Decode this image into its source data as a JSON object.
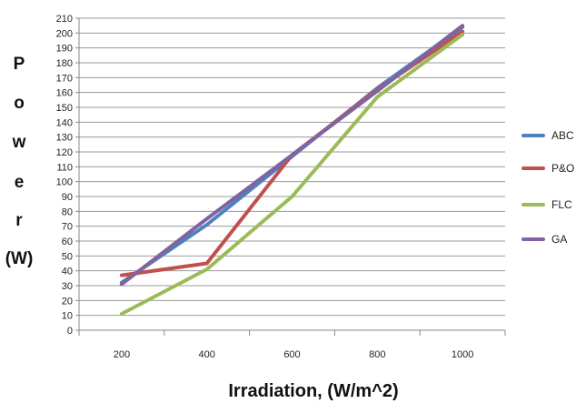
{
  "chart_data": {
    "type": "line",
    "xlabel": "Irradiation, (W/m^2)",
    "ylabel_letters": [
      "P",
      "o",
      "w",
      "e",
      "r",
      "(W)"
    ],
    "categories": [
      "200",
      "400",
      "600",
      "800",
      "1000"
    ],
    "ylim": [
      0,
      210
    ],
    "ystep": 10,
    "grid": "horizontal",
    "legend_position": "right",
    "series": [
      {
        "name": "ABC",
        "color": "#4F81BD",
        "values": [
          32,
          71,
          117,
          163,
          204
        ]
      },
      {
        "name": "P&O",
        "color": "#C0504D",
        "values": [
          37,
          45,
          118,
          162,
          201
        ]
      },
      {
        "name": "FLC",
        "color": "#9BBB59",
        "values": [
          11,
          41,
          90,
          157,
          199
        ]
      },
      {
        "name": "GA",
        "color": "#8064A2",
        "values": [
          31,
          75,
          118,
          161,
          205
        ]
      }
    ]
  }
}
